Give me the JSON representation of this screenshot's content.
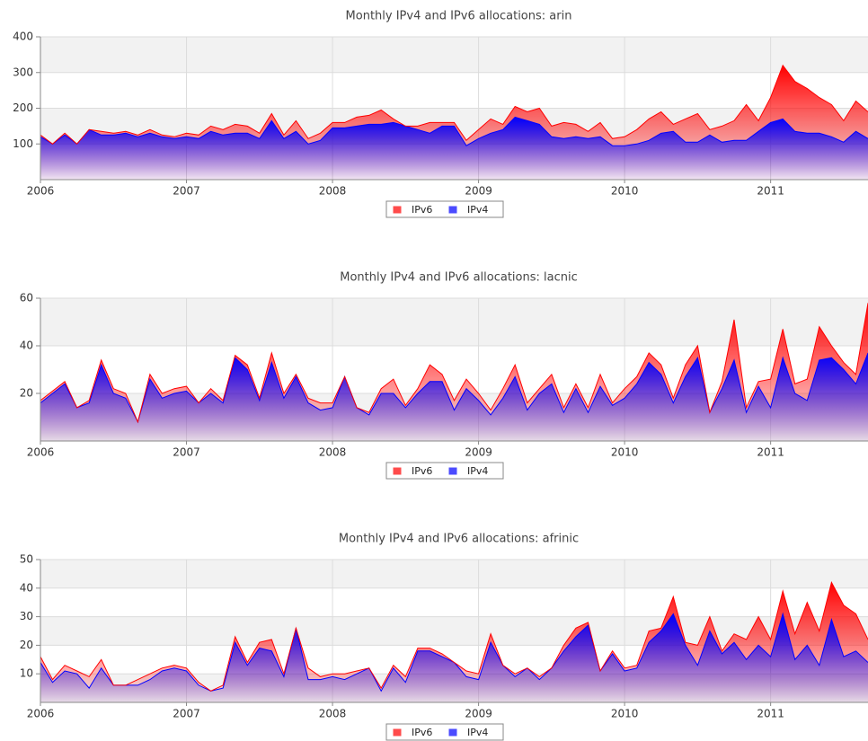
{
  "chart_data": [
    {
      "type": "area",
      "stacked": true,
      "title": "Monthly IPv4 and IPv6 allocations: arin",
      "x": [
        "2006-01",
        "2006-02",
        "2006-03",
        "2006-04",
        "2006-05",
        "2006-06",
        "2006-07",
        "2006-08",
        "2006-09",
        "2006-10",
        "2006-11",
        "2006-12",
        "2007-01",
        "2007-02",
        "2007-03",
        "2007-04",
        "2007-05",
        "2007-06",
        "2007-07",
        "2007-08",
        "2007-09",
        "2007-10",
        "2007-11",
        "2007-12",
        "2008-01",
        "2008-02",
        "2008-03",
        "2008-04",
        "2008-05",
        "2008-06",
        "2008-07",
        "2008-08",
        "2008-09",
        "2008-10",
        "2008-11",
        "2008-12",
        "2009-01",
        "2009-02",
        "2009-03",
        "2009-04",
        "2009-05",
        "2009-06",
        "2009-07",
        "2009-08",
        "2009-09",
        "2009-10",
        "2009-11",
        "2009-12",
        "2010-01",
        "2010-02",
        "2010-03",
        "2010-04",
        "2010-05",
        "2010-06",
        "2010-07",
        "2010-08",
        "2010-09",
        "2010-10",
        "2010-11",
        "2010-12",
        "2011-01",
        "2011-02",
        "2011-03",
        "2011-04",
        "2011-05",
        "2011-06",
        "2011-07",
        "2011-08",
        "2011-09"
      ],
      "series": [
        {
          "name": "IPv4",
          "color": "#0000ff",
          "values": [
            120,
            100,
            125,
            100,
            140,
            125,
            125,
            130,
            120,
            130,
            120,
            115,
            120,
            115,
            135,
            125,
            130,
            130,
            115,
            165,
            115,
            135,
            100,
            110,
            145,
            145,
            150,
            155,
            155,
            160,
            150,
            140,
            130,
            150,
            150,
            95,
            115,
            130,
            140,
            175,
            165,
            155,
            120,
            115,
            120,
            115,
            120,
            95,
            95,
            100,
            110,
            130,
            135,
            105,
            105,
            125,
            105,
            110,
            110,
            135,
            160,
            170,
            135,
            130,
            130,
            120,
            105,
            135,
            115
          ]
        },
        {
          "name": "IPv6",
          "color": "#ff0000",
          "values": [
            5,
            0,
            5,
            0,
            0,
            10,
            5,
            5,
            5,
            10,
            5,
            5,
            10,
            10,
            15,
            15,
            25,
            20,
            15,
            20,
            10,
            30,
            15,
            20,
            15,
            15,
            25,
            25,
            40,
            10,
            0,
            10,
            30,
            10,
            10,
            15,
            25,
            40,
            15,
            30,
            25,
            45,
            30,
            45,
            35,
            20,
            40,
            20,
            25,
            40,
            60,
            60,
            20,
            65,
            80,
            15,
            45,
            55,
            100,
            30,
            70,
            150,
            140,
            125,
            100,
            90,
            60,
            85,
            75
          ]
        }
      ],
      "xlim": [
        "2006-01",
        "2011-09"
      ],
      "xticks": [
        2006,
        2007,
        2008,
        2009,
        2010,
        2011
      ],
      "ylim": [
        0,
        400
      ],
      "yticks": [
        100,
        200,
        300,
        400
      ],
      "grid": true,
      "legend": "bottom"
    },
    {
      "type": "area",
      "stacked": true,
      "title": "Monthly IPv4 and IPv6 allocations: lacnic",
      "x": [
        "2006-01",
        "2006-02",
        "2006-03",
        "2006-04",
        "2006-05",
        "2006-06",
        "2006-07",
        "2006-08",
        "2006-09",
        "2006-10",
        "2006-11",
        "2006-12",
        "2007-01",
        "2007-02",
        "2007-03",
        "2007-04",
        "2007-05",
        "2007-06",
        "2007-07",
        "2007-08",
        "2007-09",
        "2007-10",
        "2007-11",
        "2007-12",
        "2008-01",
        "2008-02",
        "2008-03",
        "2008-04",
        "2008-05",
        "2008-06",
        "2008-07",
        "2008-08",
        "2008-09",
        "2008-10",
        "2008-11",
        "2008-12",
        "2009-01",
        "2009-02",
        "2009-03",
        "2009-04",
        "2009-05",
        "2009-06",
        "2009-07",
        "2009-08",
        "2009-09",
        "2009-10",
        "2009-11",
        "2009-12",
        "2010-01",
        "2010-02",
        "2010-03",
        "2010-04",
        "2010-05",
        "2010-06",
        "2010-07",
        "2010-08",
        "2010-09",
        "2010-10",
        "2010-11",
        "2010-12",
        "2011-01",
        "2011-02",
        "2011-03",
        "2011-04",
        "2011-05",
        "2011-06",
        "2011-07",
        "2011-08",
        "2011-09"
      ],
      "series": [
        {
          "name": "IPv4",
          "color": "#0000ff",
          "values": [
            16,
            20,
            24,
            14,
            16,
            32,
            20,
            18,
            8,
            26,
            18,
            20,
            21,
            16,
            20,
            16,
            35,
            30,
            17,
            33,
            18,
            27,
            16,
            13,
            14,
            27,
            14,
            11,
            20,
            20,
            14,
            20,
            25,
            25,
            13,
            22,
            17,
            11,
            18,
            27,
            13,
            20,
            24,
            12,
            22,
            12,
            23,
            15,
            18,
            24,
            33,
            28,
            16,
            27,
            35,
            12,
            22,
            34,
            12,
            23,
            14,
            35,
            20,
            17,
            34,
            35,
            30,
            24,
            37
          ]
        },
        {
          "name": "IPv6",
          "color": "#ff0000",
          "values": [
            1,
            1,
            1,
            0,
            1,
            2,
            2,
            2,
            0,
            2,
            2,
            2,
            2,
            0,
            2,
            1,
            1,
            2,
            1,
            4,
            2,
            1,
            2,
            3,
            2,
            0,
            0,
            1,
            2,
            6,
            1,
            2,
            7,
            3,
            4,
            4,
            3,
            2,
            4,
            5,
            3,
            2,
            4,
            2,
            2,
            2,
            5,
            1,
            4,
            3,
            4,
            4,
            2,
            5,
            5,
            0,
            3,
            17,
            2,
            2,
            12,
            12,
            4,
            9,
            14,
            5,
            3,
            4,
            21
          ]
        }
      ],
      "xlim": [
        "2006-01",
        "2011-09"
      ],
      "xticks": [
        2006,
        2007,
        2008,
        2009,
        2010,
        2011
      ],
      "ylim": [
        0,
        60
      ],
      "yticks": [
        20,
        40,
        60
      ],
      "grid": true,
      "legend": "bottom"
    },
    {
      "type": "area",
      "stacked": true,
      "title": "Monthly IPv4 and IPv6 allocations: afrinic",
      "x": [
        "2006-01",
        "2006-02",
        "2006-03",
        "2006-04",
        "2006-05",
        "2006-06",
        "2006-07",
        "2006-08",
        "2006-09",
        "2006-10",
        "2006-11",
        "2006-12",
        "2007-01",
        "2007-02",
        "2007-03",
        "2007-04",
        "2007-05",
        "2007-06",
        "2007-07",
        "2007-08",
        "2007-09",
        "2007-10",
        "2007-11",
        "2007-12",
        "2008-01",
        "2008-02",
        "2008-03",
        "2008-04",
        "2008-05",
        "2008-06",
        "2008-07",
        "2008-08",
        "2008-09",
        "2008-10",
        "2008-11",
        "2008-12",
        "2009-01",
        "2009-02",
        "2009-03",
        "2009-04",
        "2009-05",
        "2009-06",
        "2009-07",
        "2009-08",
        "2009-09",
        "2009-10",
        "2009-11",
        "2009-12",
        "2010-01",
        "2010-02",
        "2010-03",
        "2010-04",
        "2010-05",
        "2010-06",
        "2010-07",
        "2010-08",
        "2010-09",
        "2010-10",
        "2010-11",
        "2010-12",
        "2011-01",
        "2011-02",
        "2011-03",
        "2011-04",
        "2011-05",
        "2011-06",
        "2011-07",
        "2011-08",
        "2011-09"
      ],
      "series": [
        {
          "name": "IPv4",
          "color": "#0000ff",
          "values": [
            14,
            7,
            11,
            10,
            5,
            12,
            6,
            6,
            6,
            8,
            11,
            12,
            11,
            6,
            4,
            5,
            21,
            13,
            19,
            18,
            9,
            26,
            8,
            8,
            9,
            8,
            10,
            12,
            4,
            12,
            7,
            18,
            18,
            16,
            14,
            9,
            8,
            21,
            13,
            9,
            12,
            8,
            12,
            18,
            23,
            27,
            11,
            17,
            11,
            12,
            21,
            25,
            31,
            20,
            13,
            25,
            17,
            21,
            15,
            20,
            16,
            31,
            15,
            20,
            13,
            29,
            16,
            18,
            14
          ]
        },
        {
          "name": "IPv6",
          "color": "#ff0000",
          "values": [
            2,
            1,
            2,
            1,
            4,
            3,
            0,
            0,
            2,
            2,
            1,
            1,
            1,
            1,
            0,
            1,
            2,
            1,
            2,
            4,
            1,
            0,
            4,
            1,
            1,
            2,
            1,
            0,
            1,
            1,
            2,
            1,
            1,
            1,
            0,
            2,
            2,
            3,
            0,
            1,
            0,
            1,
            0,
            2,
            3,
            1,
            0,
            1,
            1,
            1,
            4,
            1,
            6,
            1,
            7,
            5,
            1,
            3,
            7,
            10,
            6,
            8,
            9,
            15,
            12,
            13,
            18,
            13,
            8
          ]
        }
      ],
      "xlim": [
        "2006-01",
        "2011-09"
      ],
      "xticks": [
        2006,
        2007,
        2008,
        2009,
        2010,
        2011
      ],
      "ylim": [
        0,
        50
      ],
      "yticks": [
        10,
        20,
        30,
        40,
        50
      ],
      "grid": true,
      "legend": "bottom"
    }
  ]
}
